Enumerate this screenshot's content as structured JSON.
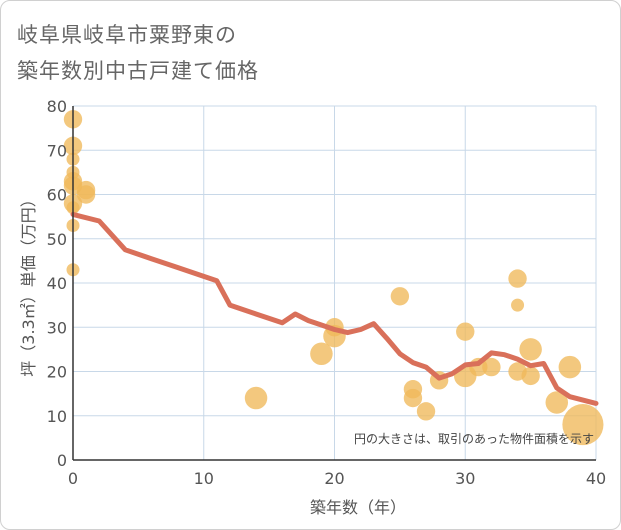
{
  "chart_data": {
    "type": "scatter",
    "title_line1": "岐阜県岐阜市粟野東の",
    "title_line2": "築年数別中古戸建て価格",
    "xlabel": "築年数（年）",
    "ylabel": "坪（3.3㎡）単価（万円）",
    "xlim": [
      0,
      40
    ],
    "ylim": [
      0,
      80
    ],
    "xticks": [
      "0",
      "10",
      "20",
      "30",
      "40"
    ],
    "yticks": [
      "0",
      "10",
      "20",
      "30",
      "40",
      "50",
      "60",
      "70",
      "80"
    ],
    "note": "円の大きさは、取引のあった物件面積を示す",
    "colors": {
      "bubble": "#f0b85a",
      "trend": "#d9705a",
      "grid": "#c8d8e8",
      "axis": "#333333"
    },
    "points": [
      {
        "x": 0,
        "y": 77,
        "size": 2
      },
      {
        "x": 0,
        "y": 71,
        "size": 2
      },
      {
        "x": 0,
        "y": 68,
        "size": 1
      },
      {
        "x": 0,
        "y": 65,
        "size": 1
      },
      {
        "x": 0,
        "y": 63,
        "size": 2
      },
      {
        "x": 0,
        "y": 62,
        "size": 2
      },
      {
        "x": 0,
        "y": 58,
        "size": 2
      },
      {
        "x": 0,
        "y": 57,
        "size": 1
      },
      {
        "x": 0,
        "y": 53,
        "size": 1
      },
      {
        "x": 0,
        "y": 43,
        "size": 1
      },
      {
        "x": 1,
        "y": 61,
        "size": 2
      },
      {
        "x": 1,
        "y": 60,
        "size": 2
      },
      {
        "x": 14,
        "y": 14,
        "size": 3
      },
      {
        "x": 19,
        "y": 24,
        "size": 3
      },
      {
        "x": 20,
        "y": 30,
        "size": 2
      },
      {
        "x": 20,
        "y": 28,
        "size": 3
      },
      {
        "x": 25,
        "y": 37,
        "size": 2
      },
      {
        "x": 26,
        "y": 16,
        "size": 2
      },
      {
        "x": 26,
        "y": 14,
        "size": 2
      },
      {
        "x": 27,
        "y": 11,
        "size": 2
      },
      {
        "x": 28,
        "y": 18,
        "size": 2
      },
      {
        "x": 30,
        "y": 29,
        "size": 2
      },
      {
        "x": 30,
        "y": 19,
        "size": 3
      },
      {
        "x": 31,
        "y": 21,
        "size": 2
      },
      {
        "x": 32,
        "y": 21,
        "size": 2
      },
      {
        "x": 34,
        "y": 41,
        "size": 2
      },
      {
        "x": 34,
        "y": 35,
        "size": 1
      },
      {
        "x": 34,
        "y": 20,
        "size": 2
      },
      {
        "x": 35,
        "y": 25,
        "size": 3
      },
      {
        "x": 35,
        "y": 19,
        "size": 2
      },
      {
        "x": 37,
        "y": 13,
        "size": 3
      },
      {
        "x": 38,
        "y": 21,
        "size": 3
      },
      {
        "x": 39,
        "y": 8,
        "size": 10
      }
    ],
    "trend": {
      "x": [
        0,
        2,
        4,
        6,
        8,
        10,
        11,
        12,
        14,
        16,
        17,
        18,
        19,
        20,
        21,
        22,
        23,
        24,
        25,
        26,
        27,
        28,
        29,
        30,
        31,
        32,
        33,
        34,
        35,
        36,
        37,
        38,
        40
      ],
      "y": [
        55.5,
        54,
        47.5,
        45.5,
        43.5,
        41.5,
        40.5,
        35,
        33,
        31,
        33,
        31.5,
        30.5,
        29.5,
        28.8,
        29.5,
        30.8,
        27.5,
        24,
        22,
        21,
        18.5,
        19.5,
        21.5,
        21.8,
        24.2,
        23.8,
        22.8,
        21.3,
        21.8,
        16.3,
        14.3,
        12.8
      ]
    }
  }
}
